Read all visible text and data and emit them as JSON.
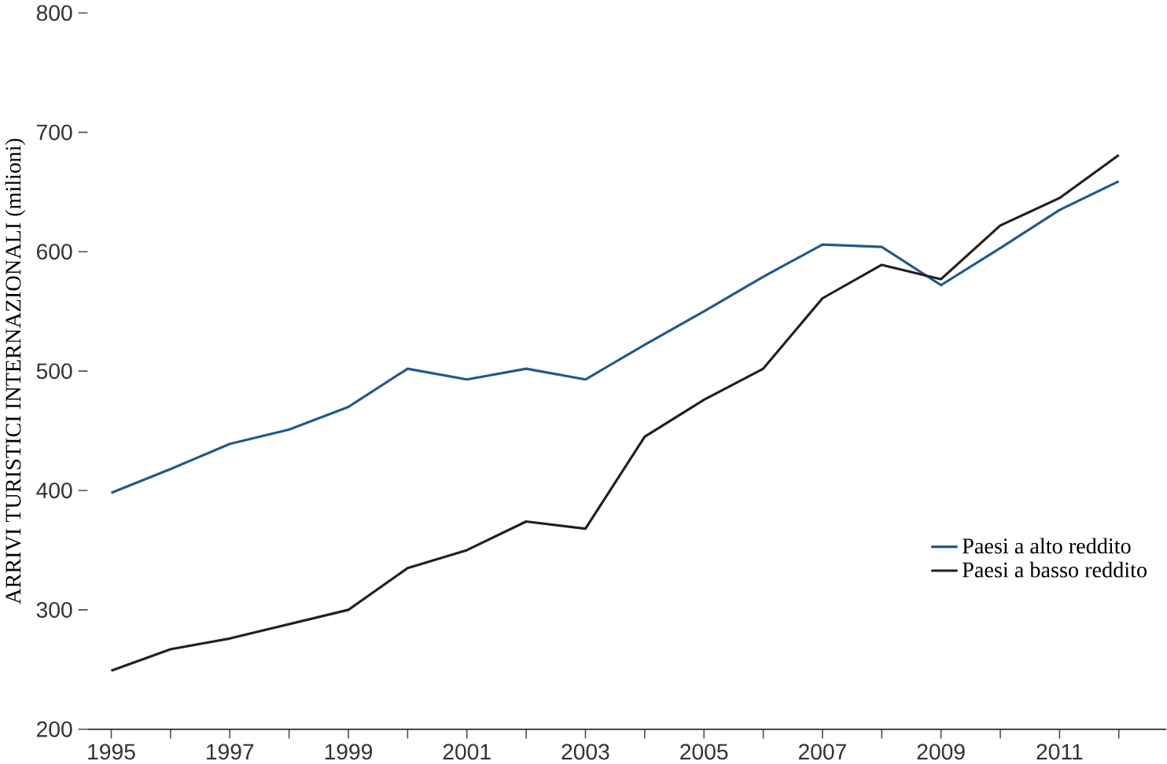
{
  "chart_data": {
    "type": "line",
    "ylabel": "ARRIVI TURISTICI INTERNAZIONALI (milioni)",
    "x": [
      1995,
      1996,
      1997,
      1998,
      1999,
      2000,
      2001,
      2002,
      2003,
      2004,
      2005,
      2006,
      2007,
      2008,
      2009,
      2010,
      2011,
      2012
    ],
    "series": [
      {
        "name": "Paesi a alto reddito",
        "color": "#1f5a8c",
        "values": [
          398,
          418,
          439,
          451,
          470,
          502,
          493,
          502,
          493,
          522,
          550,
          579,
          606,
          604,
          572,
          603,
          635,
          659
        ]
      },
      {
        "name": "Paesi a basso reddito",
        "color": "#231f20",
        "values": [
          249,
          267,
          276,
          288,
          300,
          335,
          350,
          374,
          368,
          445,
          476,
          502,
          561,
          589,
          577,
          622,
          645,
          681
        ]
      }
    ],
    "xlim": [
      1994.6,
      2012.8
    ],
    "ylim": [
      200,
      800
    ],
    "xticks": [
      1995,
      {
        "value": 1996,
        "label": null
      },
      1997,
      {
        "value": 1998,
        "label": null
      },
      1999,
      {
        "value": 2000,
        "label": null
      },
      2001,
      {
        "value": 2002,
        "label": null
      },
      2003,
      {
        "value": 2004,
        "label": null
      },
      2005,
      {
        "value": 2006,
        "label": null
      },
      2007,
      {
        "value": 2008,
        "label": null
      },
      2009,
      {
        "value": 2010,
        "label": null
      },
      2011,
      {
        "value": 2012,
        "label": null
      }
    ],
    "yticks": [
      200,
      300,
      400,
      500,
      600,
      700,
      800
    ],
    "grid": false,
    "legend": "bottom right",
    "marker": "none",
    "line_style": "solid"
  }
}
